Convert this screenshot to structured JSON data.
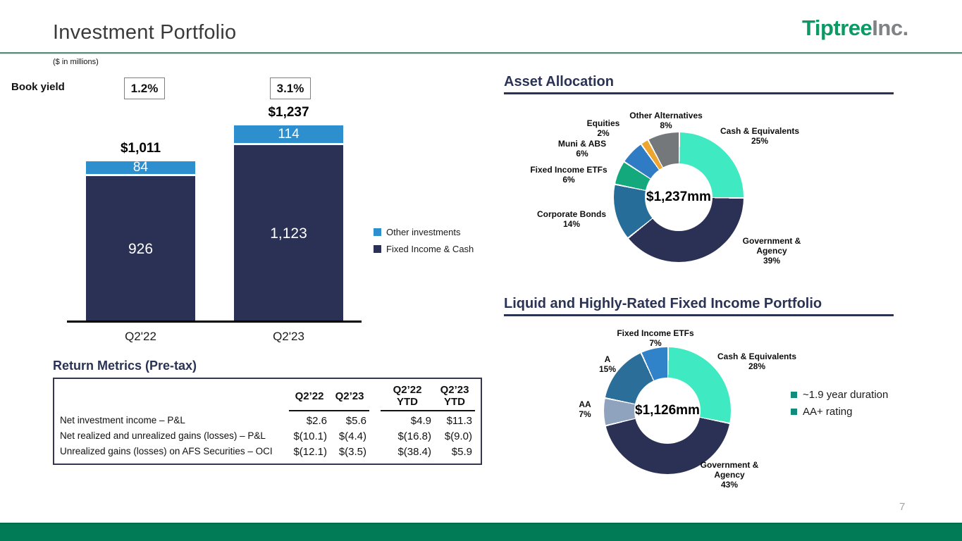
{
  "header": {
    "title": "Investment Portfolio",
    "logo": {
      "primary": "Tiptree",
      "suffix": "Inc."
    },
    "units_note": "($ in millions)"
  },
  "page_number": "7",
  "book_yield": {
    "label": "Book yield",
    "values": [
      "1.2%",
      "3.1%"
    ]
  },
  "sections": {
    "asset_allocation": "Asset Allocation",
    "liquid_fixed_income": "Liquid and Highly-Rated Fixed Income Portfolio",
    "return_metrics": "Return Metrics (Pre-tax)"
  },
  "chart_data": [
    {
      "type": "bar",
      "stacked": true,
      "title": "Investment portfolio by period ($ in millions)",
      "categories": [
        "Q2'22",
        "Q2'23"
      ],
      "series": [
        {
          "name": "Other investments",
          "color": "#2e8fce",
          "values": [
            84,
            114
          ],
          "labels": [
            "84",
            "114"
          ]
        },
        {
          "name": "Fixed Income & Cash",
          "color": "#2b3154",
          "values": [
            926,
            1123
          ],
          "labels": [
            "926",
            "1,123"
          ]
        }
      ],
      "totals": [
        1011,
        1237
      ],
      "total_labels": [
        "$1,011",
        "$1,237"
      ],
      "book_yields": [
        "1.2%",
        "3.1%"
      ],
      "xlabel": "",
      "ylabel": "",
      "legend_position": "right"
    },
    {
      "type": "donut",
      "title": "Asset Allocation",
      "center_label": "$1,237mm",
      "segments": [
        {
          "label": "Cash & Equivalents",
          "value": 25,
          "pct": "25%",
          "color": "#3fe9c1"
        },
        {
          "label": "Government & Agency",
          "value": 39,
          "pct": "39%",
          "color": "#2b3154"
        },
        {
          "label": "Corporate Bonds",
          "value": 14,
          "pct": "14%",
          "color": "#266e99"
        },
        {
          "label": "Fixed Income ETFs",
          "value": 6,
          "pct": "6%",
          "color": "#14a97d"
        },
        {
          "label": "Muni & ABS",
          "value": 6,
          "pct": "6%",
          "color": "#2f7cc4"
        },
        {
          "label": "Equities",
          "value": 2,
          "pct": "2%",
          "color": "#eca62f"
        },
        {
          "label": "Other Alternatives",
          "value": 8,
          "pct": "8%",
          "color": "#75787b"
        }
      ]
    },
    {
      "type": "donut",
      "title": "Liquid and Highly-Rated Fixed Income Portfolio",
      "center_label": "$1,126mm",
      "segments": [
        {
          "label": "Cash & Equivalents",
          "value": 28,
          "pct": "28%",
          "color": "#3fe9c1"
        },
        {
          "label": "Government & Agency",
          "value": 43,
          "pct": "43%",
          "color": "#2b3154"
        },
        {
          "label": "AA",
          "value": 7,
          "pct": "7%",
          "color": "#8fa2be"
        },
        {
          "label": "A",
          "value": 15,
          "pct": "15%",
          "color": "#2a6e99"
        },
        {
          "label": "Fixed Income ETFs",
          "value": 7,
          "pct": "7%",
          "color": "#3083c9"
        }
      ],
      "legend": {
        "marker_color": "#0f8c7c",
        "items": [
          "~1.9 year duration",
          "AA+ rating"
        ]
      }
    }
  ],
  "return_metrics_table": {
    "col_headers": [
      {
        "line1": "Q2’22",
        "line2": ""
      },
      {
        "line1": "Q2’23",
        "line2": ""
      },
      {
        "line1": "Q2’22",
        "line2": "YTD"
      },
      {
        "line1": "Q2’23",
        "line2": "YTD"
      }
    ],
    "rows": [
      {
        "label": "Net investment income – P&L",
        "values": [
          "$2.6",
          "$5.6",
          "$4.9",
          "$11.3"
        ]
      },
      {
        "label": "Net realized and unrealized gains (losses) – P&L",
        "values": [
          "$(10.1)",
          "$(4.4)",
          "$(16.8)",
          "$(9.0)"
        ]
      },
      {
        "label": "Unrealized gains (losses) on AFS Securities – OCI",
        "values": [
          "$(12.1)",
          "$(3.5)",
          "$(38.4)",
          "$5.9"
        ]
      }
    ]
  },
  "colors": {
    "brand_green": "#0b9a63",
    "footer_green": "#007b55",
    "navy": "#2b3355"
  }
}
